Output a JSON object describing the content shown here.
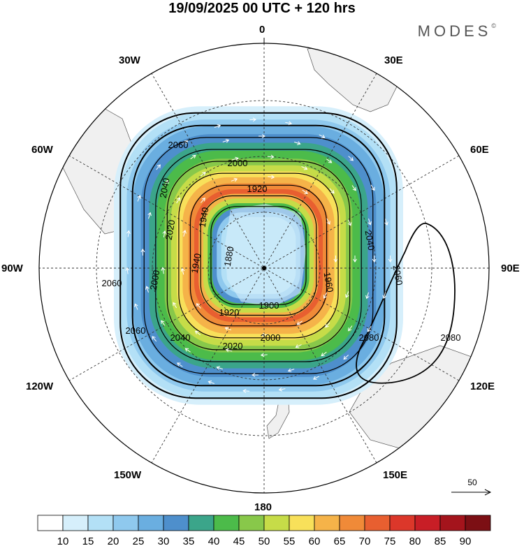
{
  "header": {
    "title": "19/09/2025  00 UTC  + 120 hrs",
    "brand": "MODES"
  },
  "map": {
    "projection": "south-polar-stereographic",
    "lon_labels": {
      "n": "0",
      "ne30": "30E",
      "ne60": "60E",
      "e": "90E",
      "se120": "120E",
      "se150": "150E",
      "s": "180",
      "sw150": "150W",
      "sw120": "120W",
      "w": "90W",
      "nw60": "60W",
      "nw30": "30W"
    },
    "contour_labels": [
      "2060",
      "2000",
      "1920",
      "2040",
      "1940",
      "2020",
      "1880",
      "2040",
      "2060",
      "1960",
      "2060",
      "1900",
      "1920",
      "2000",
      "2000",
      "2020",
      "2040",
      "2060",
      "2080",
      "2080",
      "1940"
    ],
    "wind_reference": "50"
  },
  "colorbar": {
    "ticks": [
      "10",
      "15",
      "20",
      "25",
      "30",
      "35",
      "40",
      "45",
      "50",
      "55",
      "60",
      "65",
      "70",
      "75",
      "80",
      "85",
      "90"
    ],
    "colors": [
      "#ffffff",
      "#d6effb",
      "#b3e0f6",
      "#8fc9ee",
      "#6aaee0",
      "#4e8fcc",
      "#3ba58a",
      "#4cbb4a",
      "#88c84a",
      "#c6dc48",
      "#f8e05a",
      "#f5b349",
      "#f08a38",
      "#e85f30",
      "#dc372a",
      "#c81e26",
      "#a4141c",
      "#7c0f14"
    ]
  }
}
